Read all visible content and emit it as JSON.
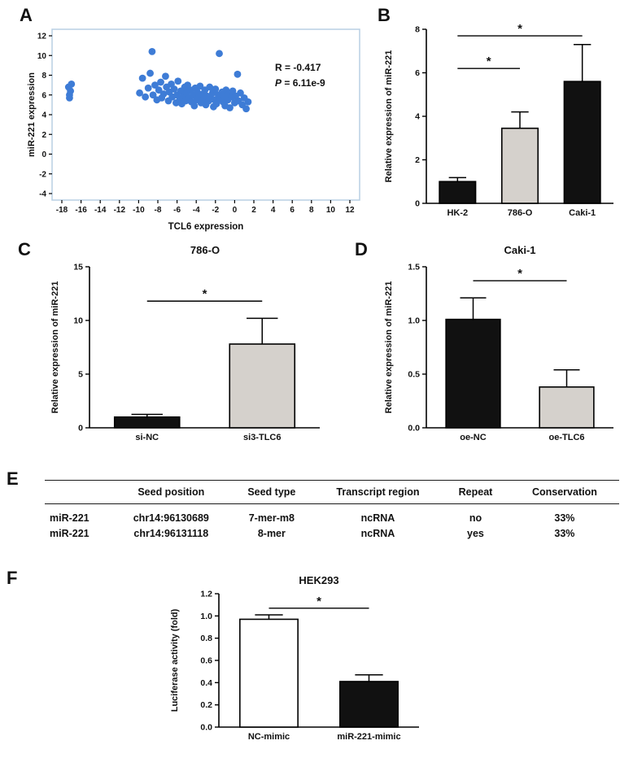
{
  "figure": {
    "panel_labels": [
      "A",
      "B",
      "C",
      "D",
      "E",
      "F"
    ]
  },
  "chart_data": [
    {
      "id": "scatter_a",
      "type": "scatter",
      "xlabel": "TCL6 expression",
      "ylabel": "miR-221 expression",
      "xlim": [
        -18,
        12
      ],
      "ylim": [
        -4,
        12
      ],
      "xticks": [
        -18,
        -16,
        -14,
        -12,
        -10,
        -8,
        -6,
        -4,
        -2,
        0,
        2,
        4,
        6,
        8,
        10,
        12
      ],
      "yticks": [
        -4,
        -2,
        0,
        2,
        4,
        6,
        8,
        10,
        12
      ],
      "annotations": {
        "r": "R = -0.417",
        "p": "P = 6.11e-9"
      },
      "point_color": "#3e7cd6",
      "frame_color": "#b8cfe4",
      "points": [
        [
          -17.2,
          6.0
        ],
        [
          -17.1,
          6.4
        ],
        [
          -17.3,
          6.8
        ],
        [
          -17.0,
          7.1
        ],
        [
          -17.2,
          5.7
        ],
        [
          -9.9,
          6.2
        ],
        [
          -9.6,
          7.7
        ],
        [
          -9.3,
          5.8
        ],
        [
          -9.0,
          6.7
        ],
        [
          -8.8,
          8.2
        ],
        [
          -8.6,
          10.4
        ],
        [
          -8.5,
          6.0
        ],
        [
          -8.3,
          7.0
        ],
        [
          -8.1,
          5.5
        ],
        [
          -7.9,
          6.5
        ],
        [
          -7.7,
          7.3
        ],
        [
          -7.6,
          5.7
        ],
        [
          -7.4,
          6.1
        ],
        [
          -7.2,
          7.9
        ],
        [
          -7.1,
          6.8
        ],
        [
          -6.9,
          5.4
        ],
        [
          -6.8,
          6.3
        ],
        [
          -6.6,
          7.1
        ],
        [
          -6.5,
          5.8
        ],
        [
          -6.3,
          6.6
        ],
        [
          -6.1,
          5.2
        ],
        [
          -6.0,
          6.0
        ],
        [
          -5.9,
          7.4
        ],
        [
          -5.7,
          5.6
        ],
        [
          -5.6,
          6.4
        ],
        [
          -5.5,
          5.1
        ],
        [
          -5.3,
          5.9
        ],
        [
          -5.2,
          6.8
        ],
        [
          -5.1,
          5.4
        ],
        [
          -5.0,
          6.2
        ],
        [
          -4.9,
          7.0
        ],
        [
          -4.7,
          5.7
        ],
        [
          -4.6,
          6.5
        ],
        [
          -4.5,
          5.3
        ],
        [
          -4.3,
          6.0
        ],
        [
          -4.2,
          4.9
        ],
        [
          -4.1,
          6.7
        ],
        [
          -4.0,
          5.5
        ],
        [
          -3.9,
          6.3
        ],
        [
          -3.7,
          5.8
        ],
        [
          -3.6,
          6.9
        ],
        [
          -3.5,
          5.2
        ],
        [
          -3.3,
          6.1
        ],
        [
          -3.2,
          5.6
        ],
        [
          -3.1,
          6.5
        ],
        [
          -3.0,
          5.0
        ],
        [
          -2.9,
          5.9
        ],
        [
          -2.7,
          5.4
        ],
        [
          -2.6,
          6.8
        ],
        [
          -2.5,
          5.7
        ],
        [
          -2.3,
          6.2
        ],
        [
          -2.2,
          4.8
        ],
        [
          -2.1,
          5.5
        ],
        [
          -2.0,
          6.6
        ],
        [
          -1.9,
          5.1
        ],
        [
          -1.7,
          6.0
        ],
        [
          -1.6,
          10.2
        ],
        [
          -1.5,
          5.6
        ],
        [
          -1.3,
          6.3
        ],
        [
          -1.2,
          5.3
        ],
        [
          -1.1,
          5.9
        ],
        [
          -1.0,
          4.9
        ],
        [
          -0.9,
          6.5
        ],
        [
          -0.7,
          5.5
        ],
        [
          -0.6,
          6.1
        ],
        [
          -0.5,
          4.7
        ],
        [
          -0.3,
          5.8
        ],
        [
          -0.2,
          6.4
        ],
        [
          0.0,
          5.2
        ],
        [
          0.1,
          5.9
        ],
        [
          0.3,
          8.1
        ],
        [
          0.4,
          5.4
        ],
        [
          0.6,
          6.2
        ],
        [
          0.8,
          5.0
        ],
        [
          1.0,
          5.7
        ],
        [
          1.2,
          4.6
        ],
        [
          1.4,
          5.3
        ]
      ]
    },
    {
      "id": "bar_b",
      "type": "bar",
      "title": "",
      "ylabel": "Relative expression of miR-221",
      "categories": [
        "HK-2",
        "786-O",
        "Caki-1"
      ],
      "values": [
        1.0,
        3.45,
        5.6
      ],
      "errors": [
        0.18,
        0.75,
        1.7
      ],
      "bar_colors": [
        "#111111",
        "#d5d1cc",
        "#111111"
      ],
      "ylim": [
        0,
        8
      ],
      "yticks": [
        0,
        2,
        4,
        6,
        8
      ],
      "sig": [
        {
          "from": 0,
          "to": 1,
          "y": 6.2,
          "label": "*"
        },
        {
          "from": 0,
          "to": 2,
          "y": 7.7,
          "label": "*"
        }
      ]
    },
    {
      "id": "bar_c",
      "type": "bar",
      "title": "786-O",
      "ylabel": "Relative expression of miR-221",
      "categories": [
        "si-NC",
        "si3-TLC6"
      ],
      "values": [
        1.0,
        7.8
      ],
      "errors": [
        0.25,
        2.4
      ],
      "bar_colors": [
        "#111111",
        "#d5d1cc"
      ],
      "ylim": [
        0,
        15
      ],
      "yticks": [
        0,
        5,
        10,
        15
      ],
      "sig": [
        {
          "from": 0,
          "to": 1,
          "y": 11.8,
          "label": "*"
        }
      ]
    },
    {
      "id": "bar_d",
      "type": "bar",
      "title": "Caki-1",
      "ylabel": "Relative expression of miR-221",
      "categories": [
        "oe-NC",
        "oe-TLC6"
      ],
      "values": [
        1.01,
        0.38
      ],
      "errors": [
        0.2,
        0.16
      ],
      "bar_colors": [
        "#111111",
        "#d5d1cc"
      ],
      "ylim": [
        0,
        1.5
      ],
      "yticks": [
        0,
        0.5,
        1,
        1.5
      ],
      "ytick_labels": [
        "0.0",
        "0.5",
        "1.0",
        "1.5"
      ],
      "sig": [
        {
          "from": 0,
          "to": 1,
          "y": 1.37,
          "label": "*"
        }
      ]
    },
    {
      "id": "bar_f",
      "type": "bar",
      "title": "HEK293",
      "ylabel": "Luciferase activity (fold)",
      "categories": [
        "NC-mimic",
        "miR-221-mimic"
      ],
      "values": [
        0.97,
        0.41
      ],
      "errors": [
        0.04,
        0.06
      ],
      "bar_colors": [
        "#ffffff",
        "#111111"
      ],
      "ylim": [
        0,
        1.2
      ],
      "yticks": [
        0,
        0.2,
        0.4,
        0.6,
        0.8,
        1,
        1.2
      ],
      "ytick_labels": [
        "0.0",
        "0.2",
        "0.4",
        "0.6",
        "0.8",
        "1.0",
        "1.2"
      ],
      "sig": [
        {
          "from": 0,
          "to": 1,
          "y": 1.07,
          "label": "*"
        }
      ]
    }
  ],
  "table": {
    "headers": [
      "",
      "Seed position",
      "Seed type",
      "Transcript region",
      "Repeat",
      "Conservation"
    ],
    "rows": [
      [
        "miR-221",
        "chr14:96130689",
        "7-mer-m8",
        "ncRNA",
        "no",
        "33%"
      ],
      [
        "miR-221",
        "chr14:96131118",
        "8-mer",
        "ncRNA",
        "yes",
        "33%"
      ]
    ]
  }
}
